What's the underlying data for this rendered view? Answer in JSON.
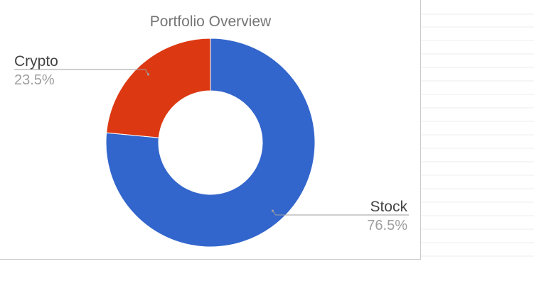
{
  "chart_data": {
    "type": "pie",
    "donut": true,
    "title": "Portfolio Overview",
    "slices": [
      {
        "name": "Stock",
        "value": 76.5,
        "label": "76.5%",
        "color": "#3366cc",
        "label_side": "right"
      },
      {
        "name": "Crypto",
        "value": 23.5,
        "label": "23.5%",
        "color": "#dc3912",
        "label_side": "left"
      }
    ],
    "legend": "labels"
  }
}
